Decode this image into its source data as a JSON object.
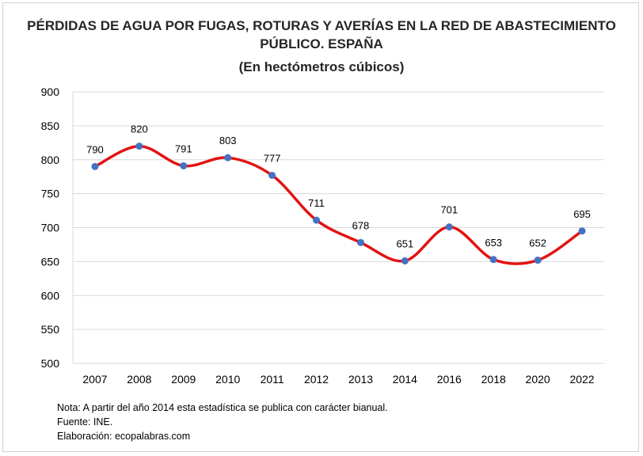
{
  "chart_data": {
    "type": "line",
    "title_lines": [
      "PÉRDIDAS DE AGUA POR FUGAS, ROTURAS Y AVERÍAS EN LA RED DE ABASTECIMIENTO",
      "PÚBLICO. ESPAÑA"
    ],
    "subtitle": "(En hectómetros cúbicos)",
    "categories": [
      "2007",
      "2008",
      "2009",
      "2010",
      "2011",
      "2012",
      "2013",
      "2014",
      "2016",
      "2018",
      "2020",
      "2022"
    ],
    "values": [
      790,
      820,
      791,
      803,
      777,
      711,
      678,
      651,
      701,
      653,
      652,
      695
    ],
    "data_labels": [
      "790",
      "820",
      "791",
      "803",
      "777",
      "711",
      "678",
      "651",
      "701",
      "653",
      "652",
      "695"
    ],
    "yticks": [
      "500",
      "550",
      "600",
      "650",
      "700",
      "750",
      "800",
      "850",
      "900"
    ],
    "ylim": [
      500,
      900
    ],
    "ystep": 50,
    "grid": true,
    "legend": "none",
    "smooth": true,
    "colors": {
      "line": "#e31313",
      "marker": "#4472c4",
      "grid": "#d9d9d9",
      "axis_text": "#000000"
    }
  },
  "notes": [
    "Nota: A partir del año 2014 esta estadística se publica con carácter bianual.",
    "Fuente: INE.",
    "Elaboración: ecopalabras.com"
  ]
}
